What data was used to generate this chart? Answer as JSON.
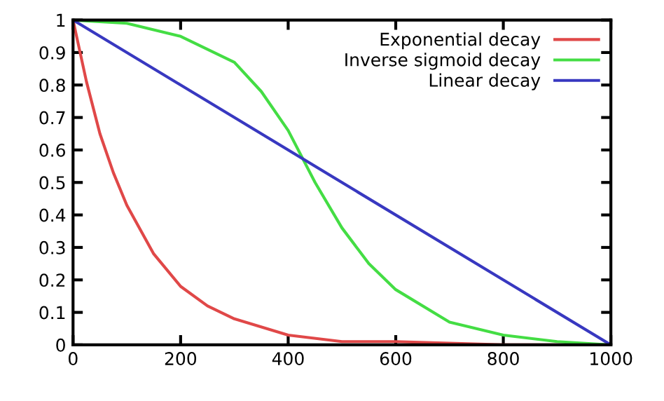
{
  "chart_data": {
    "type": "line",
    "xlim": [
      0,
      1000
    ],
    "ylim": [
      0,
      1
    ],
    "xticks": [
      0,
      200,
      400,
      600,
      800,
      1000
    ],
    "yticks": [
      0,
      0.1,
      0.2,
      0.3,
      0.4,
      0.5,
      0.6,
      0.7,
      0.8,
      0.9,
      1
    ],
    "grid": false,
    "legend": "top right",
    "marker": "none",
    "line_style": "solid",
    "series": [
      {
        "name": "Exponential decay",
        "color": "#e04848",
        "x": [
          0,
          25,
          50,
          75,
          100,
          150,
          200,
          250,
          300,
          400,
          500,
          600,
          800,
          1000
        ],
        "values": [
          1,
          0.81,
          0.65,
          0.53,
          0.43,
          0.28,
          0.18,
          0.12,
          0.08,
          0.03,
          0.01,
          0.01,
          0,
          0
        ]
      },
      {
        "name": "Inverse sigmoid decay",
        "color": "#44dd44",
        "x": [
          0,
          100,
          200,
          300,
          350,
          400,
          450,
          500,
          550,
          600,
          700,
          800,
          900,
          1000
        ],
        "values": [
          1,
          0.99,
          0.95,
          0.87,
          0.78,
          0.66,
          0.5,
          0.36,
          0.25,
          0.17,
          0.07,
          0.03,
          0.01,
          0
        ]
      },
      {
        "name": "Linear decay",
        "color": "#3838c0",
        "x": [
          0,
          1000
        ],
        "values": [
          1,
          0
        ]
      }
    ]
  }
}
